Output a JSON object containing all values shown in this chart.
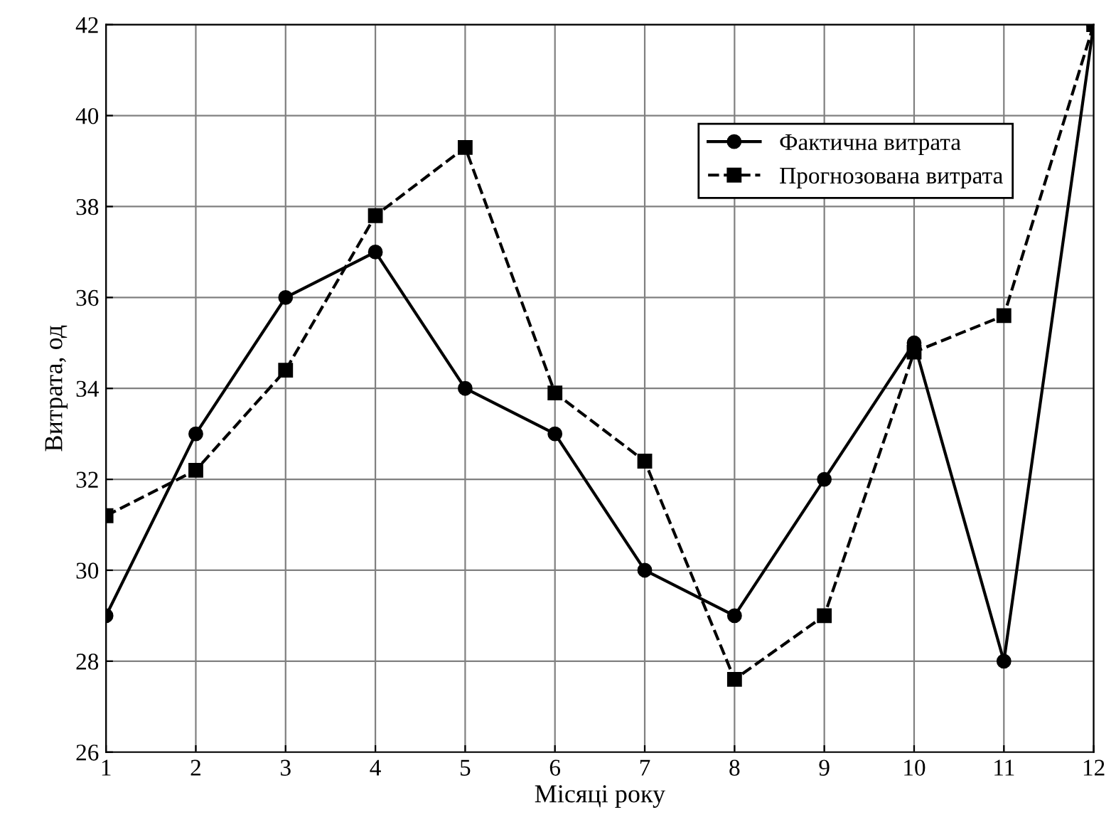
{
  "chart_data": {
    "type": "line",
    "xlabel": "Місяці року",
    "ylabel": "Витрата, од",
    "x": [
      1,
      2,
      3,
      4,
      5,
      6,
      7,
      8,
      9,
      10,
      11,
      12
    ],
    "series": [
      {
        "name": "Фактична витрата",
        "color": "#000000",
        "marker": "circle",
        "line_style": "solid",
        "values": [
          29,
          33,
          36,
          37,
          34,
          33,
          30,
          29,
          32,
          35,
          28,
          42
        ]
      },
      {
        "name": "Прогнозована витрата",
        "color": "#000000",
        "marker": "square",
        "line_style": "dashed",
        "values": [
          31.2,
          32.2,
          34.4,
          37.8,
          39.3,
          33.9,
          32.4,
          27.6,
          29,
          34.8,
          35.6,
          42
        ]
      }
    ],
    "xlim": [
      1,
      12
    ],
    "xticks": [
      1,
      2,
      3,
      4,
      5,
      6,
      7,
      8,
      9,
      10,
      11,
      12
    ],
    "ylim": [
      26,
      42
    ],
    "yticks": [
      26,
      28,
      30,
      32,
      34,
      36,
      38,
      40,
      42
    ],
    "grid": true,
    "legend": "top right"
  }
}
